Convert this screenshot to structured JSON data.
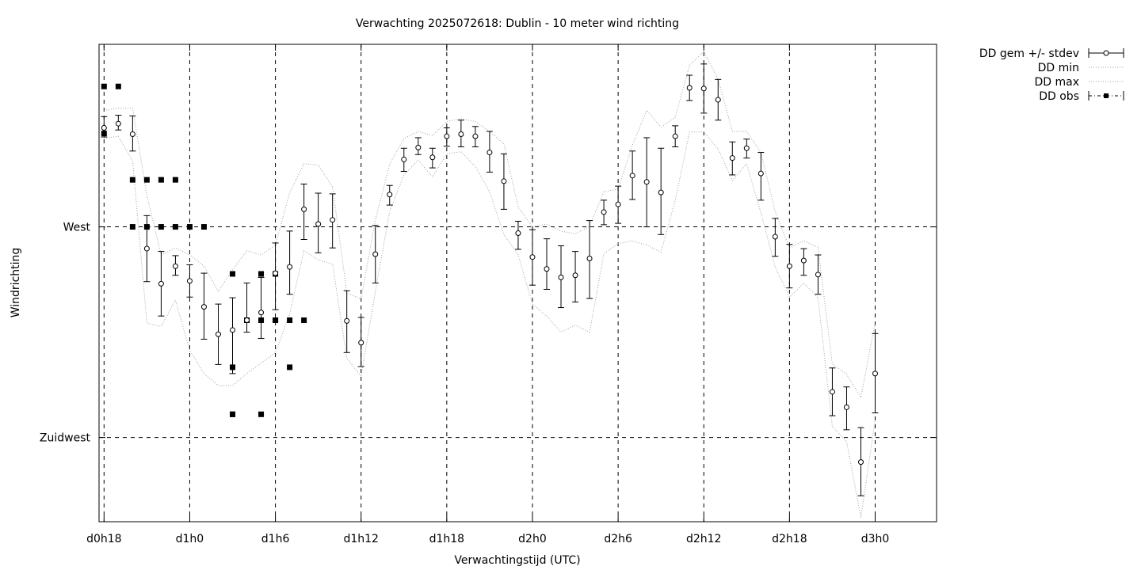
{
  "chart_data": {
    "type": "line",
    "title": "Verwachting 2025072618: Dublin - 10 meter wind richting",
    "xlabel": "Verwachtingstijd (UTC)",
    "ylabel": "Windrichting",
    "x_unit": "hours since d0h0",
    "xlim": [
      17.65,
      76.3
    ],
    "ylim": [
      213.0,
      281.0
    ],
    "x_ticks": [
      {
        "x": 18,
        "label": "d0h18"
      },
      {
        "x": 24,
        "label": "d1h0"
      },
      {
        "x": 30,
        "label": "d1h6"
      },
      {
        "x": 36,
        "label": "d1h12"
      },
      {
        "x": 42,
        "label": "d1h18"
      },
      {
        "x": 48,
        "label": "d2h0"
      },
      {
        "x": 54,
        "label": "d2h6"
      },
      {
        "x": 60,
        "label": "d2h12"
      },
      {
        "x": 66,
        "label": "d2h18"
      },
      {
        "x": 72,
        "label": "d3h0"
      }
    ],
    "y_ticks": [
      {
        "y": 225,
        "label": "Zuidwest"
      },
      {
        "y": 255,
        "label": "West"
      }
    ],
    "grid": true,
    "legend": "outside-top-right",
    "series": [
      {
        "name": "DD gem +/- stdev",
        "kind": "errorbar",
        "x": [
          18,
          19,
          20,
          21,
          22,
          23,
          24,
          25,
          26,
          27,
          28,
          29,
          30,
          31,
          32,
          33,
          34,
          35,
          36,
          37,
          38,
          39,
          40,
          41,
          42,
          43,
          44,
          45,
          46,
          47,
          48,
          49,
          50,
          51,
          52,
          53,
          54,
          55,
          56,
          57,
          58,
          59,
          60,
          61,
          62,
          63,
          64,
          65,
          66,
          67,
          68,
          69,
          70,
          71,
          72
        ],
        "mean": [
          269.1,
          269.7,
          268.2,
          251.9,
          246.9,
          249.4,
          247.3,
          243.6,
          239.7,
          240.3,
          241.7,
          242.8,
          248.4,
          249.3,
          257.5,
          255.4,
          256.0,
          241.6,
          238.5,
          251.1,
          259.6,
          264.6,
          266.3,
          264.9,
          267.9,
          268.2,
          267.9,
          265.6,
          261.5,
          254.1,
          250.7,
          249.0,
          247.8,
          248.1,
          250.5,
          257.1,
          258.2,
          262.3,
          261.4,
          259.9,
          267.9,
          274.8,
          274.7,
          273.1,
          264.8,
          266.2,
          262.6,
          253.6,
          249.4,
          250.2,
          248.2,
          231.5,
          229.3,
          221.5,
          234.1
        ],
        "err_lo": [
          1.3,
          0.9,
          2.4,
          4.7,
          4.6,
          1.3,
          2.3,
          4.6,
          4.3,
          6.2,
          1.7,
          3.7,
          5.2,
          3.9,
          4.3,
          4.1,
          4.0,
          4.5,
          3.4,
          4.1,
          1.5,
          1.7,
          1.0,
          1.5,
          1.4,
          1.8,
          1.5,
          2.8,
          4.0,
          2.3,
          4.0,
          2.9,
          4.3,
          3.8,
          5.7,
          1.8,
          2.7,
          3.4,
          6.4,
          6.0,
          1.5,
          1.8,
          3.5,
          2.9,
          2.4,
          1.4,
          3.8,
          2.8,
          3.1,
          2.1,
          2.8,
          3.4,
          3.2,
          4.8,
          5.6
        ],
        "err_hi": [
          1.6,
          1.2,
          2.6,
          4.7,
          4.6,
          1.5,
          2.3,
          4.8,
          4.3,
          4.6,
          5.3,
          5.0,
          4.3,
          5.1,
          3.6,
          4.4,
          3.7,
          4.3,
          3.6,
          4.1,
          1.3,
          1.6,
          1.4,
          1.3,
          1.2,
          2.0,
          1.4,
          3.0,
          3.9,
          1.7,
          3.9,
          4.3,
          4.5,
          3.4,
          5.4,
          1.7,
          2.6,
          3.5,
          6.3,
          6.3,
          1.5,
          1.8,
          3.5,
          2.9,
          2.3,
          1.3,
          3.0,
          2.6,
          3.1,
          1.7,
          2.8,
          3.4,
          2.9,
          4.9,
          5.7
        ]
      },
      {
        "name": "DD min",
        "kind": "line-dotted",
        "x": [
          18,
          19,
          20,
          21,
          22,
          23,
          24,
          25,
          26,
          27,
          28,
          29,
          30,
          31,
          32,
          33,
          34,
          35,
          36,
          37,
          38,
          39,
          40,
          41,
          42,
          43,
          44,
          45,
          46,
          47,
          48,
          49,
          50,
          51,
          52,
          53,
          54,
          55,
          56,
          57,
          58,
          59,
          60,
          61,
          62,
          63,
          64,
          65,
          66,
          67,
          68,
          69,
          70,
          71,
          72
        ],
        "y": [
          267.6,
          267.9,
          264.4,
          241.3,
          240.8,
          244.6,
          237.4,
          234.1,
          232.4,
          232.4,
          234.1,
          235.6,
          237.1,
          242.6,
          251.6,
          250.3,
          249.7,
          236.3,
          233.7,
          245.8,
          257.2,
          262.4,
          264.5,
          262.1,
          265.4,
          265.7,
          263.6,
          260.0,
          253.9,
          251.0,
          244.0,
          242.3,
          240.0,
          241.0,
          240.0,
          251.2,
          252.6,
          253.0,
          252.4,
          251.4,
          258.8,
          268.5,
          268.5,
          266.1,
          261.6,
          264.0,
          257.0,
          249.3,
          245.0,
          247.0,
          244.9,
          226.6,
          224.4,
          213.6,
          227.5
        ]
      },
      {
        "name": "DD max",
        "kind": "line-dotted",
        "x": [
          18,
          19,
          20,
          21,
          22,
          23,
          24,
          25,
          26,
          27,
          28,
          29,
          30,
          31,
          32,
          33,
          34,
          35,
          36,
          37,
          38,
          39,
          40,
          41,
          42,
          43,
          44,
          45,
          46,
          47,
          48,
          49,
          50,
          51,
          52,
          53,
          54,
          55,
          56,
          57,
          58,
          59,
          60,
          61,
          62,
          63,
          64,
          65,
          66,
          67,
          68,
          69,
          70,
          71,
          72
        ],
        "y": [
          271.6,
          271.9,
          271.9,
          259.4,
          251.0,
          252.0,
          251.0,
          249.4,
          245.8,
          248.9,
          251.6,
          251.0,
          252.4,
          259.9,
          264.0,
          263.8,
          260.7,
          245.6,
          244.7,
          256.0,
          263.9,
          267.6,
          268.6,
          268.0,
          270.0,
          270.4,
          270.0,
          268.6,
          266.8,
          257.8,
          255.0,
          255.4,
          254.4,
          254.0,
          255.1,
          260.0,
          260.4,
          266.6,
          271.6,
          269.2,
          270.6,
          278.0,
          280.0,
          276.0,
          268.6,
          268.6,
          265.6,
          257.2,
          252.0,
          253.0,
          252.1,
          235.5,
          234.0,
          230.7,
          241.4
        ]
      },
      {
        "name": "DD obs",
        "kind": "points",
        "x": [
          18,
          18,
          19,
          20,
          20,
          21,
          21,
          22,
          22,
          23,
          23,
          24,
          25,
          27,
          27,
          27,
          27,
          28,
          28,
          29,
          29,
          29,
          30,
          30,
          30,
          31,
          31,
          32
        ],
        "y": [
          275.0,
          268.3,
          275.0,
          261.7,
          255.0,
          261.7,
          255.0,
          261.7,
          255.0,
          261.7,
          255.0,
          255.0,
          255.0,
          248.3,
          235.0,
          228.3,
          228.3,
          241.7,
          241.7,
          248.3,
          241.7,
          228.3,
          248.3,
          241.7,
          241.7,
          241.7,
          235.0,
          241.7
        ]
      }
    ]
  }
}
